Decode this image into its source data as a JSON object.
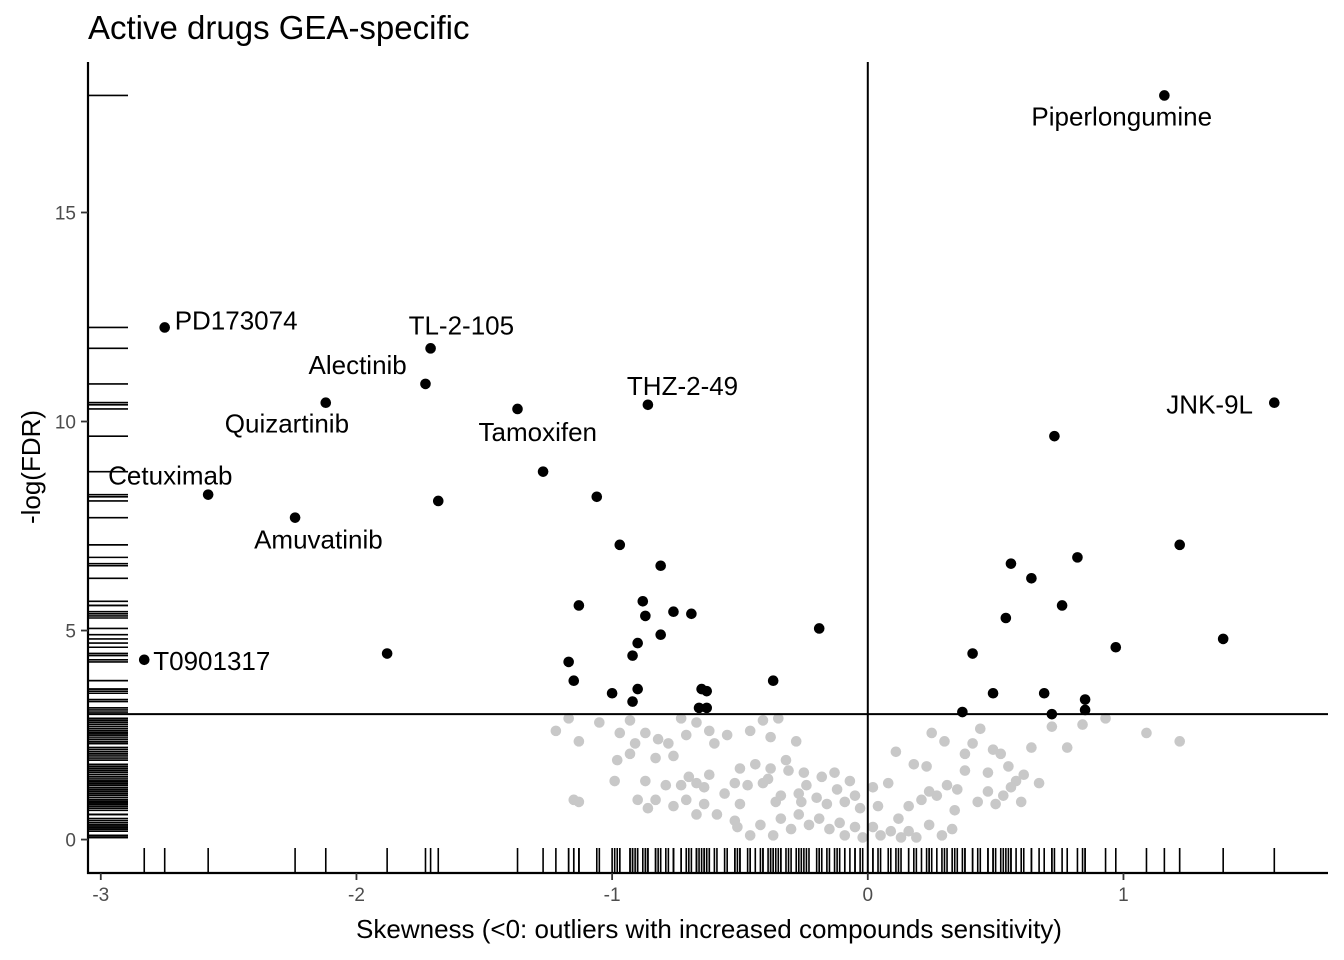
{
  "chart_data": {
    "type": "scatter",
    "title": "Active drugs GEA-specific",
    "xlabel": "Skewness (<0: outliers with increased compounds sensitivity)",
    "ylabel": "-log(FDR)",
    "xlim": [
      -3.05,
      1.8
    ],
    "ylim": [
      -0.8,
      18.6
    ],
    "x_ticks": [
      -3,
      -2,
      -1,
      0,
      1
    ],
    "x_tick_labels": [
      "-3",
      "-2",
      "-1",
      "0",
      "1"
    ],
    "y_ticks": [
      0,
      5,
      10,
      15
    ],
    "y_tick_labels": [
      "0",
      "5",
      "10",
      "15"
    ],
    "reference_lines": {
      "vertical_x": 0,
      "horizontal_y": 3
    },
    "rug": true,
    "grid": false,
    "colors": {
      "significant": "#000000",
      "not_significant": "#c8c8c8",
      "axes": "#000000"
    },
    "labels": [
      {
        "text": "Piperlongumine",
        "x": 1.16,
        "y": 17.8
      },
      {
        "text": "PD173074",
        "x": -2.75,
        "y": 12.25
      },
      {
        "text": "TL-2-105",
        "x": -1.71,
        "y": 11.75
      },
      {
        "text": "Alectinib",
        "x": -1.73,
        "y": 10.9
      },
      {
        "text": "THZ-2-49",
        "x": -0.86,
        "y": 10.4
      },
      {
        "text": "JNK-9L",
        "x": 1.59,
        "y": 10.45
      },
      {
        "text": "Quizartinib",
        "x": -2.12,
        "y": 10.45
      },
      {
        "text": "Tamoxifen",
        "x": -1.37,
        "y": 10.3
      },
      {
        "text": "Cetuximab",
        "x": -2.58,
        "y": 8.25
      },
      {
        "text": "Amuvatinib",
        "x": -2.24,
        "y": 7.7
      },
      {
        "text": "T0901317",
        "x": -2.83,
        "y": 4.3
      }
    ],
    "series": [
      {
        "values": [
          [
            1.16,
            17.8
          ],
          [
            -2.75,
            12.25
          ],
          [
            -1.71,
            11.75
          ],
          [
            -1.73,
            10.9
          ],
          [
            -0.86,
            10.4
          ],
          [
            1.59,
            10.45
          ],
          [
            -2.12,
            10.45
          ],
          [
            -1.37,
            10.3
          ],
          [
            -2.58,
            8.25
          ],
          [
            -2.24,
            7.7
          ],
          [
            -2.83,
            4.3
          ],
          [
            -1.27,
            8.8
          ],
          [
            -1.68,
            8.1
          ],
          [
            -1.06,
            8.2
          ],
          [
            0.73,
            9.65
          ],
          [
            -0.97,
            7.05
          ],
          [
            -0.81,
            6.55
          ],
          [
            -1.88,
            4.45
          ],
          [
            -1.13,
            5.6
          ],
          [
            -0.88,
            5.7
          ],
          [
            -0.87,
            5.35
          ],
          [
            -0.76,
            5.45
          ],
          [
            -0.69,
            5.4
          ],
          [
            -0.81,
            4.9
          ],
          [
            -0.9,
            4.7
          ],
          [
            -0.92,
            4.4
          ],
          [
            -1.17,
            4.25
          ],
          [
            -1.15,
            3.8
          ],
          [
            -1.0,
            3.5
          ],
          [
            -0.9,
            3.6
          ],
          [
            -0.92,
            3.3
          ],
          [
            -0.65,
            3.6
          ],
          [
            -0.63,
            3.55
          ],
          [
            -0.66,
            3.15
          ],
          [
            -0.63,
            3.15
          ],
          [
            -0.37,
            3.8
          ],
          [
            -0.19,
            5.05
          ],
          [
            0.56,
            6.6
          ],
          [
            0.64,
            6.25
          ],
          [
            0.82,
            6.75
          ],
          [
            1.22,
            7.05
          ],
          [
            0.54,
            5.3
          ],
          [
            0.76,
            5.6
          ],
          [
            1.39,
            4.8
          ],
          [
            0.97,
            4.6
          ],
          [
            0.41,
            4.45
          ],
          [
            0.49,
            3.5
          ],
          [
            0.69,
            3.5
          ],
          [
            0.85,
            3.35
          ],
          [
            0.85,
            3.1
          ],
          [
            0.37,
            3.05
          ],
          [
            0.72,
            3.0
          ]
        ]
      },
      {
        "values": [
          [
            -1.22,
            2.6
          ],
          [
            -1.17,
            2.9
          ],
          [
            -1.13,
            2.35
          ],
          [
            -1.05,
            2.8
          ],
          [
            -0.97,
            2.55
          ],
          [
            -0.93,
            2.85
          ],
          [
            -0.91,
            2.3
          ],
          [
            -0.87,
            2.55
          ],
          [
            -0.82,
            2.4
          ],
          [
            -0.78,
            2.3
          ],
          [
            -0.73,
            2.9
          ],
          [
            -0.71,
            2.5
          ],
          [
            -0.67,
            2.8
          ],
          [
            -0.62,
            2.6
          ],
          [
            -0.6,
            2.3
          ],
          [
            -0.55,
            2.5
          ],
          [
            -0.5,
            1.7
          ],
          [
            -0.46,
            2.6
          ],
          [
            -0.41,
            2.85
          ],
          [
            -0.38,
            2.45
          ],
          [
            -0.35,
            2.9
          ],
          [
            -0.32,
            1.9
          ],
          [
            -0.28,
            2.35
          ],
          [
            -0.25,
            1.6
          ],
          [
            -0.18,
            1.5
          ],
          [
            -0.12,
            1.2
          ],
          [
            -0.05,
            1.05
          ],
          [
            0.02,
            1.25
          ],
          [
            0.11,
            2.1
          ],
          [
            0.18,
            1.8
          ],
          [
            0.23,
            1.75
          ],
          [
            0.25,
            2.55
          ],
          [
            0.3,
            2.35
          ],
          [
            0.35,
            1.2
          ],
          [
            0.38,
            2.05
          ],
          [
            0.41,
            2.3
          ],
          [
            0.44,
            2.65
          ],
          [
            0.47,
            1.6
          ],
          [
            0.49,
            2.15
          ],
          [
            0.52,
            2.05
          ],
          [
            0.55,
            1.75
          ],
          [
            0.58,
            1.4
          ],
          [
            0.61,
            1.55
          ],
          [
            0.64,
            2.2
          ],
          [
            0.67,
            1.35
          ],
          [
            0.72,
            2.7
          ],
          [
            0.78,
            2.2
          ],
          [
            0.84,
            2.75
          ],
          [
            0.93,
            2.9
          ],
          [
            1.09,
            2.55
          ],
          [
            1.22,
            2.35
          ],
          [
            -0.98,
            1.9
          ],
          [
            -0.99,
            1.4
          ],
          [
            -0.93,
            2.05
          ],
          [
            -0.87,
            1.4
          ],
          [
            -0.83,
            1.95
          ],
          [
            -0.79,
            1.3
          ],
          [
            -0.76,
            2.0
          ],
          [
            -0.73,
            1.3
          ],
          [
            -0.7,
            1.5
          ],
          [
            -0.67,
            1.35
          ],
          [
            -0.64,
            1.25
          ],
          [
            -0.62,
            1.55
          ],
          [
            -0.56,
            1.1
          ],
          [
            -0.52,
            1.35
          ],
          [
            -0.5,
            0.85
          ],
          [
            -0.47,
            1.3
          ],
          [
            -0.44,
            1.8
          ],
          [
            -0.41,
            1.35
          ],
          [
            -0.38,
            1.7
          ],
          [
            -0.34,
            1.05
          ],
          [
            -0.31,
            1.65
          ],
          [
            -0.27,
            1.1
          ],
          [
            -0.24,
            1.3
          ],
          [
            -0.2,
            1.0
          ],
          [
            -0.16,
            0.85
          ],
          [
            -0.13,
            1.6
          ],
          [
            -0.09,
            0.9
          ],
          [
            -0.07,
            1.4
          ],
          [
            -0.03,
            0.75
          ],
          [
            0.04,
            0.8
          ],
          [
            0.08,
            1.35
          ],
          [
            0.12,
            0.5
          ],
          [
            0.16,
            0.8
          ],
          [
            0.21,
            0.95
          ],
          [
            0.24,
            1.15
          ],
          [
            0.27,
            1.05
          ],
          [
            0.31,
            1.3
          ],
          [
            0.34,
            0.7
          ],
          [
            0.38,
            1.65
          ],
          [
            0.43,
            0.9
          ],
          [
            0.47,
            1.15
          ],
          [
            0.5,
            0.85
          ],
          [
            0.53,
            1.05
          ],
          [
            0.56,
            1.25
          ],
          [
            0.6,
            0.9
          ],
          [
            -0.9,
            0.95
          ],
          [
            -0.86,
            0.75
          ],
          [
            -0.83,
            0.95
          ],
          [
            -0.76,
            0.8
          ],
          [
            -0.71,
            0.95
          ],
          [
            -0.67,
            0.6
          ],
          [
            -0.64,
            0.85
          ],
          [
            -0.59,
            0.6
          ],
          [
            -0.51,
            0.3
          ],
          [
            -0.46,
            0.1
          ],
          [
            -0.42,
            0.35
          ],
          [
            -0.37,
            0.1
          ],
          [
            -0.34,
            0.5
          ],
          [
            -0.3,
            0.25
          ],
          [
            -0.27,
            0.6
          ],
          [
            -0.23,
            0.35
          ],
          [
            -0.19,
            0.5
          ],
          [
            -0.15,
            0.25
          ],
          [
            -0.11,
            0.4
          ],
          [
            -0.09,
            0.1
          ],
          [
            -0.05,
            0.3
          ],
          [
            -0.02,
            0.05
          ],
          [
            0.02,
            0.3
          ],
          [
            0.05,
            0.1
          ],
          [
            0.09,
            0.2
          ],
          [
            0.13,
            0.05
          ],
          [
            0.16,
            0.2
          ],
          [
            0.19,
            0.05
          ],
          [
            0.24,
            0.35
          ],
          [
            0.29,
            0.1
          ],
          [
            0.33,
            0.25
          ],
          [
            -1.15,
            0.95
          ],
          [
            -1.13,
            0.9
          ],
          [
            -0.36,
            0.9
          ],
          [
            -0.52,
            0.45
          ],
          [
            -0.39,
            1.45
          ],
          [
            -0.26,
            0.9
          ]
        ]
      }
    ]
  }
}
